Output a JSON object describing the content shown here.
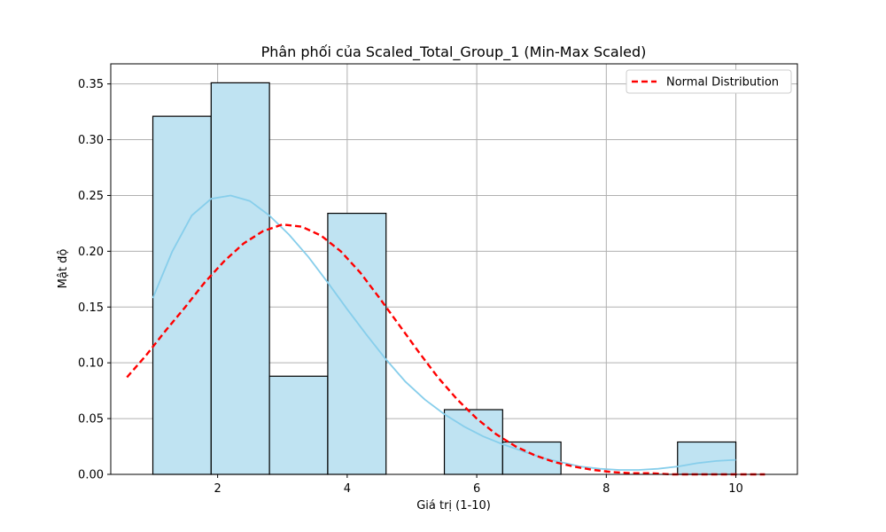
{
  "chart_data": {
    "type": "bar",
    "title": "Phân phối của Scaled_Total_Group_1 (Min-Max Scaled)",
    "xlabel": "Giá trị (1-10)",
    "ylabel": "Mật độ",
    "xlim": [
      0.35,
      10.95
    ],
    "ylim": [
      0,
      0.368
    ],
    "xticks": [
      2,
      4,
      6,
      8,
      10
    ],
    "yticks": [
      0.0,
      0.05,
      0.1,
      0.15,
      0.2,
      0.25,
      0.3,
      0.35
    ],
    "ytick_labels": [
      "0.00",
      "0.05",
      "0.10",
      "0.15",
      "0.20",
      "0.25",
      "0.30",
      "0.35"
    ],
    "grid": true,
    "legend": {
      "position": "top-right",
      "entries": [
        "Normal Distribution"
      ]
    },
    "histogram": {
      "fill": "#bfe3f2",
      "edge": "#000000",
      "bins": [
        {
          "x0": 1.0,
          "x1": 1.9,
          "density": 0.321
        },
        {
          "x0": 1.9,
          "x1": 2.8,
          "density": 0.351
        },
        {
          "x0": 2.8,
          "x1": 3.7,
          "density": 0.088
        },
        {
          "x0": 3.7,
          "x1": 4.6,
          "density": 0.234
        },
        {
          "x0": 4.6,
          "x1": 5.5,
          "density": 0.0
        },
        {
          "x0": 5.5,
          "x1": 6.4,
          "density": 0.058
        },
        {
          "x0": 6.4,
          "x1": 7.3,
          "density": 0.029
        },
        {
          "x0": 7.3,
          "x1": 8.2,
          "density": 0.0
        },
        {
          "x0": 8.2,
          "x1": 9.1,
          "density": 0.0
        },
        {
          "x0": 9.1,
          "x1": 10.0,
          "density": 0.029
        }
      ]
    },
    "series": [
      {
        "kind": "kde",
        "color": "#87ceeb",
        "x": [
          1.0,
          1.3,
          1.6,
          1.9,
          2.2,
          2.5,
          2.8,
          3.1,
          3.4,
          3.7,
          4.0,
          4.3,
          4.6,
          4.9,
          5.2,
          5.5,
          5.8,
          6.1,
          6.4,
          6.7,
          7.0,
          7.3,
          7.6,
          7.9,
          8.2,
          8.5,
          8.8,
          9.1,
          9.4,
          9.7,
          10.0
        ],
        "y": [
          0.158,
          0.2,
          0.232,
          0.247,
          0.25,
          0.245,
          0.232,
          0.215,
          0.195,
          0.172,
          0.148,
          0.125,
          0.103,
          0.083,
          0.067,
          0.054,
          0.043,
          0.034,
          0.027,
          0.021,
          0.015,
          0.011,
          0.007,
          0.005,
          0.004,
          0.004,
          0.005,
          0.007,
          0.01,
          0.012,
          0.013
        ]
      },
      {
        "name": "Normal Distribution",
        "kind": "normal",
        "color": "#ff0000",
        "dashed": true,
        "x": [
          0.6,
          0.9,
          1.2,
          1.5,
          1.8,
          2.1,
          2.4,
          2.7,
          3.0,
          3.3,
          3.6,
          3.9,
          4.2,
          4.5,
          4.8,
          5.1,
          5.4,
          5.7,
          6.0,
          6.3,
          6.6,
          6.9,
          7.2,
          7.5,
          7.8,
          8.1,
          8.4,
          8.7,
          9.0,
          9.3,
          9.6,
          9.9,
          10.2,
          10.45
        ],
        "y": [
          0.087,
          0.107,
          0.129,
          0.15,
          0.172,
          0.191,
          0.207,
          0.218,
          0.224,
          0.222,
          0.214,
          0.2,
          0.181,
          0.158,
          0.134,
          0.11,
          0.087,
          0.067,
          0.05,
          0.036,
          0.025,
          0.017,
          0.011,
          0.007,
          0.004,
          0.002,
          0.001,
          0.001,
          0.0,
          0.0,
          0.0,
          0.0,
          0.0,
          0.0
        ]
      }
    ]
  }
}
